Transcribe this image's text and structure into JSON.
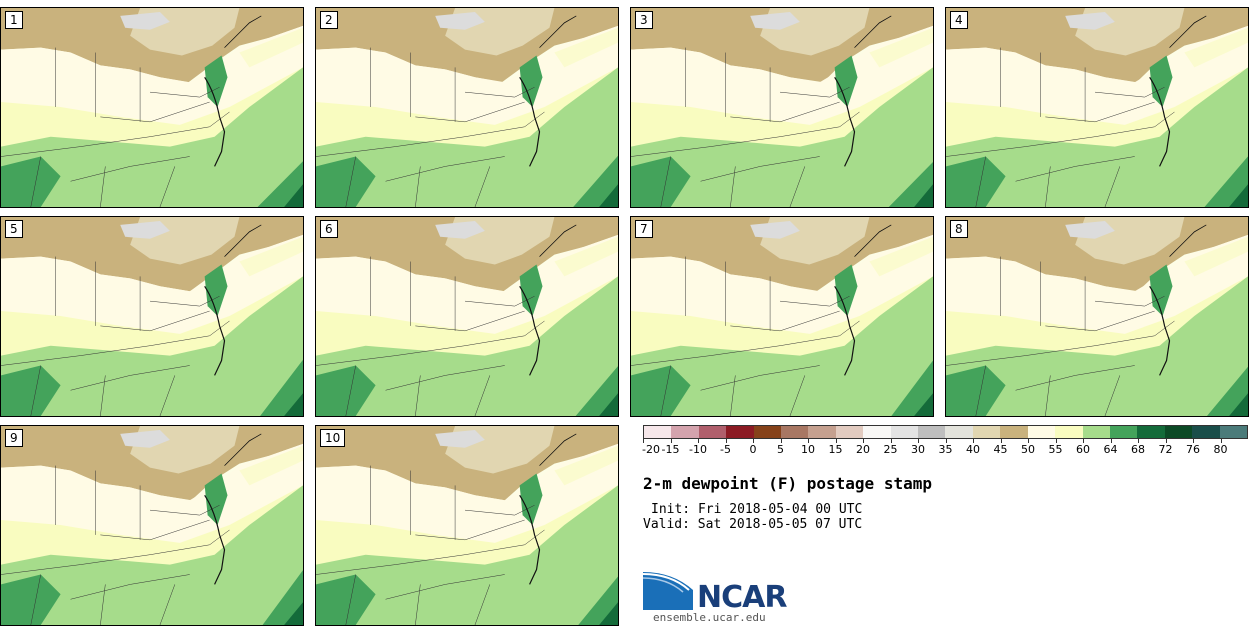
{
  "panels": [
    {
      "label": "1"
    },
    {
      "label": "2"
    },
    {
      "label": "3"
    },
    {
      "label": "4"
    },
    {
      "label": "5"
    },
    {
      "label": "6"
    },
    {
      "label": "7"
    },
    {
      "label": "8"
    },
    {
      "label": "9"
    },
    {
      "label": "10"
    }
  ],
  "colorbar": {
    "colors": [
      "#f6e7ea",
      "#d4a3ad",
      "#b05f6c",
      "#8c1b24",
      "#86421a",
      "#a87763",
      "#c5a08f",
      "#e2cbc0",
      "#f8f7f5",
      "#e3e3e3",
      "#bebebe",
      "#e3e3dc",
      "#e1d6b1",
      "#c9b27d",
      "#fffbe5",
      "#f9fcc0",
      "#a6dc8b",
      "#44a35b",
      "#146b3a",
      "#0c4a26",
      "#1a4e4a",
      "#4b7b7a"
    ],
    "ticks": [
      "-20",
      "-15",
      "-10",
      "-5",
      "0",
      "5",
      "10",
      "15",
      "20",
      "25",
      "30",
      "35",
      "40",
      "45",
      "50",
      "55",
      "60",
      "64",
      "68",
      "72",
      "76",
      "80"
    ]
  },
  "title": "2-m dewpoint (F) postage stamp",
  "init": "Init: Fri 2018-05-04 00 UTC",
  "valid": "Valid: Sat 2018-05-05 07 UTC",
  "logo": {
    "text": "NCAR",
    "colors": {
      "blue": "#1a6fb8",
      "dark": "#1a3f7a"
    }
  },
  "site": "ensemble.ucar.edu"
}
